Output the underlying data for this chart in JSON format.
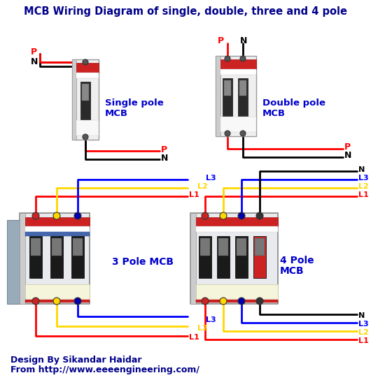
{
  "title": "MCB Wiring Diagram of single, double, three and 4 pole",
  "title_color": "#00008B",
  "title_fontsize": 10.5,
  "bg_color": "#FFFFFF",
  "footer_line1": "Design By Sikandar Haidar",
  "footer_line2": "From http://www.eeeengineering.com/",
  "footer_color": "#00008B",
  "footer_fontsize": 9,
  "label_color": "#0000CC",
  "wire_red": "#FF0000",
  "wire_black": "#000000",
  "wire_yellow": "#FFD700",
  "wire_blue": "#0000FF",
  "mcb_body_light": "#E8EAED",
  "mcb_body_mid": "#C8CACD",
  "mcb_border": "#888888",
  "mcb_red_logo": "#CC2222",
  "mcb_switch_dark": "#2A2A2A",
  "mcb_switch_light": "#AAAAAA",
  "mcb_blue_stripe": "#5577AA",
  "mcb_terminal_dark": "#333333"
}
